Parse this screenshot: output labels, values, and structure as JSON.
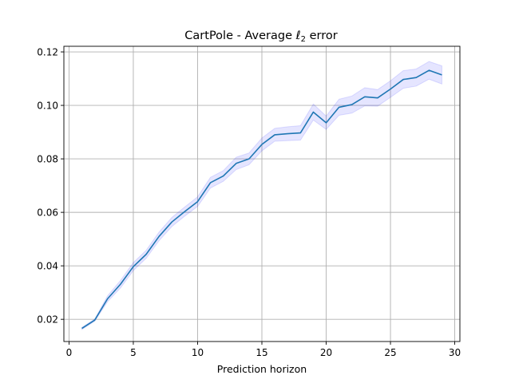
{
  "chart_data": {
    "type": "line",
    "title_prefix": "CartPole - Average ",
    "title_symbol": "ℓ",
    "title_subscript": "2",
    "title_suffix": " error",
    "xlabel": "Prediction horizon",
    "ylabel": "",
    "xlim": [
      -0.4,
      30.4
    ],
    "ylim": [
      0.0117,
      0.1221
    ],
    "xticks": [
      0,
      5,
      10,
      15,
      20,
      25,
      30
    ],
    "yticks": [
      0.02,
      0.04,
      0.06,
      0.08,
      0.1,
      0.12
    ],
    "ytick_labels": [
      "0.02",
      "0.04",
      "0.06",
      "0.08",
      "0.10",
      "0.12"
    ],
    "grid": true,
    "series": [
      {
        "color": "#1f77b4",
        "band_color": "#0000ff",
        "band_opacity": 0.1,
        "x": [
          1,
          2,
          3,
          4,
          5,
          6,
          7,
          8,
          9,
          10,
          11,
          12,
          13,
          14,
          15,
          16,
          17,
          18,
          19,
          20,
          21,
          22,
          23,
          24,
          25,
          26,
          27,
          28,
          29
        ],
        "y": [
          0.0166,
          0.0197,
          0.0277,
          0.0331,
          0.0397,
          0.0443,
          0.051,
          0.0564,
          0.0603,
          0.064,
          0.0711,
          0.0736,
          0.0783,
          0.08,
          0.0854,
          0.089,
          0.0894,
          0.0897,
          0.0975,
          0.0935,
          0.0993,
          0.1003,
          0.1032,
          0.1028,
          0.1061,
          0.1097,
          0.1104,
          0.1131,
          0.1114
        ],
        "lower": [
          0.0162,
          0.0193,
          0.0266,
          0.0317,
          0.0382,
          0.0428,
          0.0494,
          0.0547,
          0.0586,
          0.0622,
          0.0691,
          0.0716,
          0.076,
          0.0778,
          0.083,
          0.0866,
          0.0868,
          0.087,
          0.0945,
          0.091,
          0.0963,
          0.0971,
          0.0998,
          0.0997,
          0.103,
          0.1064,
          0.1072,
          0.1098,
          0.108
        ],
        "upper": [
          0.017,
          0.0201,
          0.0288,
          0.0345,
          0.0412,
          0.0458,
          0.0526,
          0.0581,
          0.062,
          0.0658,
          0.0731,
          0.0756,
          0.0806,
          0.0822,
          0.0878,
          0.0914,
          0.092,
          0.0924,
          0.1005,
          0.096,
          0.1023,
          0.1035,
          0.1066,
          0.1059,
          0.1092,
          0.113,
          0.1136,
          0.1164,
          0.1148
        ]
      }
    ]
  }
}
